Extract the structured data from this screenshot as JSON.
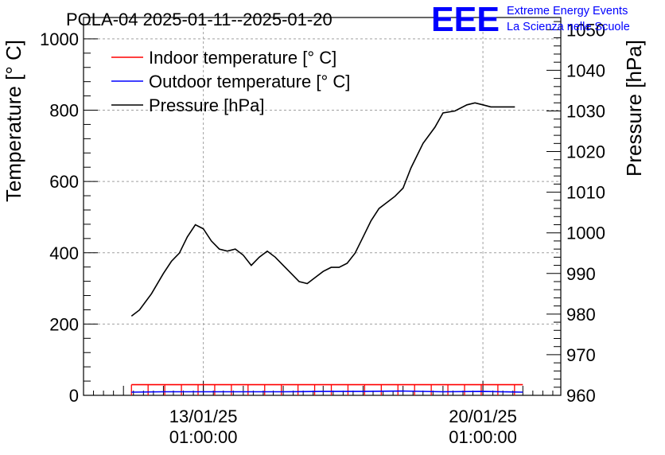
{
  "chart_data": {
    "type": "line",
    "title": "POLA-04 2025-01-11--2025-01-20",
    "logo": {
      "mark": "EEE",
      "line1": "Extreme Energy Events",
      "line2": "La Scienza nelle Scuole"
    },
    "xaxis": {
      "ticks": [
        {
          "label1": "13/01/25",
          "label2": "01:00:00",
          "x": 1
        },
        {
          "label1": "20/01/25",
          "label2": "01:00:00",
          "x": 8
        }
      ],
      "xlim": [
        -2.0,
        9.95
      ]
    },
    "yleft": {
      "label": "Temperature [° C]",
      "ylim": [
        0,
        1060
      ],
      "ticks": [
        0,
        200,
        400,
        600,
        800,
        1000
      ]
    },
    "yright": {
      "label": "Pressure [hPa]",
      "ylim": [
        960,
        1053
      ],
      "ticks": [
        960,
        970,
        980,
        990,
        1000,
        1010,
        1020,
        1030,
        1040,
        1050
      ]
    },
    "legend": [
      {
        "name": "Indoor temperature [° C]",
        "color": "#ff0000"
      },
      {
        "name": "Outdoor temperature [° C]",
        "color": "#0000ff"
      },
      {
        "name": "Pressure [hPa]",
        "color": "#000000"
      }
    ],
    "series": [
      {
        "name": "Pressure [hPa]",
        "axis": "right",
        "color": "#000000",
        "x": [
          -0.8,
          -0.6,
          -0.3,
          0.0,
          0.2,
          0.4,
          0.6,
          0.8,
          1.0,
          1.2,
          1.4,
          1.6,
          1.8,
          2.0,
          2.2,
          2.4,
          2.6,
          2.8,
          3.0,
          3.2,
          3.4,
          3.6,
          3.8,
          4.0,
          4.2,
          4.4,
          4.6,
          4.8,
          5.0,
          5.2,
          5.4,
          5.6,
          5.8,
          6.0,
          6.2,
          6.5,
          6.8,
          7.0,
          7.3,
          7.6,
          7.8,
          8.0,
          8.2,
          8.4,
          8.6,
          8.8
        ],
        "values": [
          979.5,
          981,
          985,
          990,
          993,
          995,
          999,
          1002,
          1001,
          998,
          996,
          995.5,
          996,
          994.5,
          992,
          994,
          995.5,
          994,
          992,
          990,
          988,
          987.5,
          989,
          990.5,
          991.5,
          991.5,
          992.5,
          995,
          999,
          1003,
          1006,
          1007.5,
          1009,
          1011,
          1016,
          1022,
          1026,
          1029.5,
          1030,
          1031.5,
          1032,
          1031.5,
          1031,
          1031,
          1031,
          1031
        ]
      },
      {
        "name": "Indoor temperature [° C]",
        "axis": "left",
        "color": "#ff0000",
        "x": [
          -0.8,
          9.0
        ],
        "values": [
          30,
          30
        ]
      },
      {
        "name": "Outdoor temperature [° C]",
        "axis": "left",
        "color": "#0000ff",
        "x": [
          -0.8,
          0.0,
          1.0,
          2.0,
          3.0,
          4.0,
          5.0,
          6.0,
          7.0,
          8.0,
          9.0
        ],
        "values": [
          9,
          10,
          10,
          10,
          10,
          11,
          11,
          12,
          10,
          11,
          9
        ]
      }
    ]
  }
}
